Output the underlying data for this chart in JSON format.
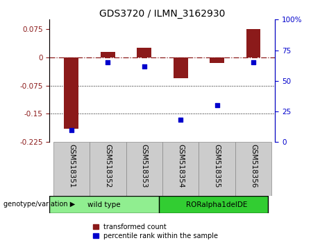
{
  "title": "GDS3720 / ILMN_3162930",
  "samples": [
    "GSM518351",
    "GSM518352",
    "GSM518353",
    "GSM518354",
    "GSM518355",
    "GSM518356"
  ],
  "red_values": [
    -0.19,
    0.015,
    0.025,
    -0.055,
    -0.015,
    0.075
  ],
  "blue_values": [
    10,
    65,
    62,
    18,
    30,
    65
  ],
  "ylim_left": [
    -0.225,
    0.1
  ],
  "ylim_right": [
    0,
    100
  ],
  "yticks_left": [
    0.075,
    0,
    -0.075,
    -0.15,
    -0.225
  ],
  "yticks_right": [
    100,
    75,
    50,
    25,
    0
  ],
  "hlines": [
    -0.075,
    -0.15
  ],
  "bar_color": "#8B1A1A",
  "dot_color": "#0000CC",
  "group1_label": "wild type",
  "group2_label": "RORalpha1delDE",
  "group1_color": "#90EE90",
  "group2_color": "#32CD32",
  "legend_red": "transformed count",
  "legend_blue": "percentile rank within the sample",
  "genotype_label": "genotype/variation",
  "title_fontsize": 10,
  "tick_fontsize": 7.5,
  "label_fontsize": 7.5
}
